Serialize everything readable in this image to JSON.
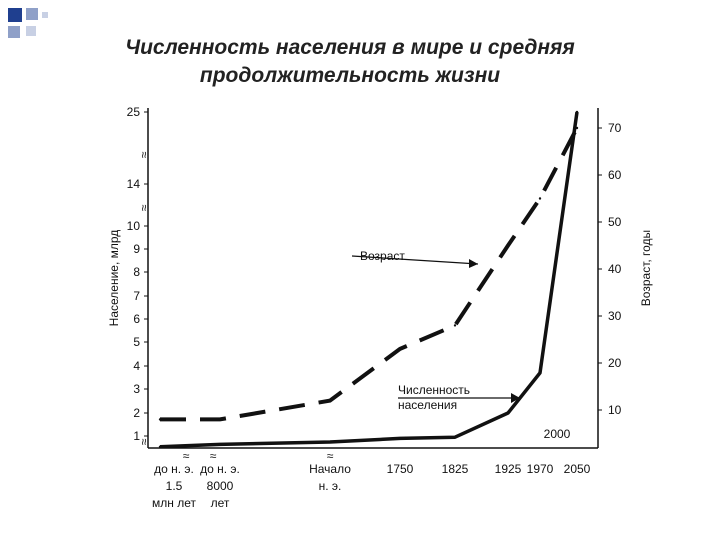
{
  "title_line1": "Численность населения в мире и средняя",
  "title_line2": "продолжительность жизни",
  "chart_data": {
    "type": "line",
    "ylabel_left": "Население, млрд",
    "ylabel_right": "Возраст, годы",
    "left_ticks": [
      "1",
      "2",
      "3",
      "4",
      "5",
      "6",
      "7",
      "8",
      "9",
      "10",
      "14",
      "25"
    ],
    "right_ticks": [
      "10",
      "20",
      "30",
      "40",
      "50",
      "60",
      "70"
    ],
    "x_ticks": [
      {
        "lines": [
          "до н. э.",
          "1.5",
          "млн лет"
        ]
      },
      {
        "lines": [
          "до н. э.",
          "8000",
          "лет"
        ]
      },
      {
        "lines": [
          "Начало",
          "н. э."
        ]
      },
      {
        "lines": [
          "1750"
        ]
      },
      {
        "lines": [
          "1825"
        ]
      },
      {
        "lines": [
          "1925"
        ]
      },
      {
        "lines": [
          "1970"
        ]
      },
      {
        "lines": [
          "2050"
        ]
      }
    ],
    "extra_label": "2000",
    "series": [
      {
        "name": "Численность населения",
        "values": [
          0.1,
          0.3,
          0.5,
          0.8,
          0.9,
          2.0,
          3.7,
          25
        ]
      },
      {
        "name": "Возраст",
        "values": [
          8,
          8,
          12,
          23,
          28,
          45,
          55,
          70
        ]
      }
    ],
    "annotations": [
      {
        "lines": [
          "Возраст"
        ]
      },
      {
        "lines": [
          "Численность",
          "населения"
        ]
      }
    ]
  },
  "colors": {
    "line": "#111111",
    "bullet_dark": "#1f3f8f",
    "bullet_light": "#8fa0c8"
  }
}
